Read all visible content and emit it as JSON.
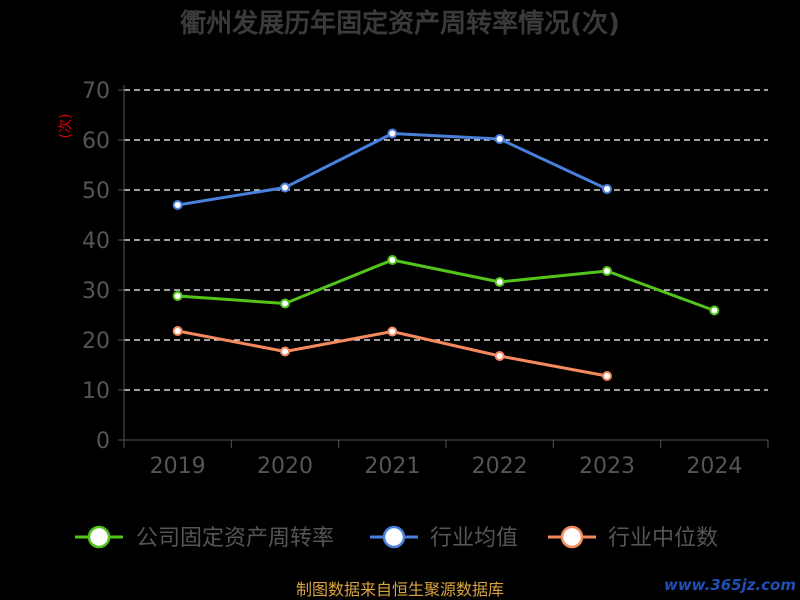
{
  "chart_data": {
    "type": "line",
    "title": "衢州发展历年固定资产周转率情况(次)",
    "ylabel": "(次)",
    "xlabel": "",
    "categories": [
      "2019",
      "2020",
      "2021",
      "2022",
      "2023",
      "2024"
    ],
    "ylim": [
      0,
      70
    ],
    "yticks": [
      0,
      10,
      20,
      30,
      40,
      50,
      60,
      70
    ],
    "grid": true,
    "legend_position": "bottom",
    "series": [
      {
        "name": "公司固定资产周转率",
        "color": "#52c41a",
        "values": [
          28.8,
          27.3,
          36.0,
          31.6,
          33.8,
          25.9
        ]
      },
      {
        "name": "行业均值",
        "color": "#4a7fdb",
        "values": [
          47.0,
          50.5,
          61.3,
          60.2,
          50.2,
          null
        ]
      },
      {
        "name": "行业中位数",
        "color": "#f4895f",
        "values": [
          21.8,
          17.7,
          21.7,
          16.8,
          12.8,
          null
        ]
      }
    ]
  },
  "source": "制图数据来自恒生聚源数据库",
  "watermark": "www.365jz.com"
}
